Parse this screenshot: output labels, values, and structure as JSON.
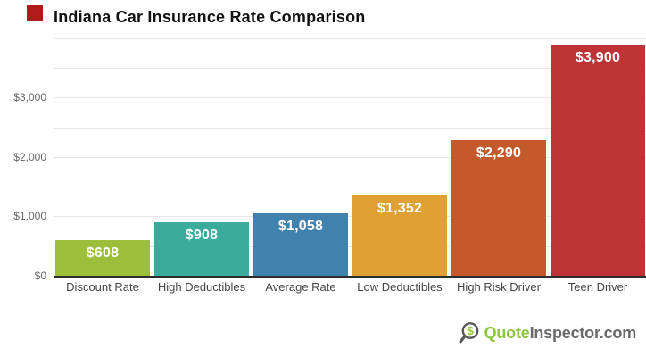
{
  "chart_data": {
    "type": "bar",
    "title": "Indiana Car Insurance Rate Comparison",
    "categories": [
      "Discount Rate",
      "High Deductibles",
      "Average Rate",
      "Low Deductibles",
      "High Risk Driver",
      "Teen Driver"
    ],
    "values": [
      608,
      908,
      1058,
      1352,
      2290,
      3900
    ],
    "bar_labels": [
      "$608",
      "$908",
      "$1,058",
      "$1,352",
      "$2,290",
      "$3,900"
    ],
    "colors": [
      "#9BBE3B",
      "#3AAC9C",
      "#4181AE",
      "#DFA134",
      "#C45A2C",
      "#BE3335"
    ],
    "xlabel": "",
    "ylabel": "",
    "ylim": [
      0,
      4000
    ],
    "gridline_step": 500,
    "grid": true,
    "legend": false,
    "yticks": [
      {
        "value": 0,
        "label": "$0"
      },
      {
        "value": 1000,
        "label": "$1,000"
      },
      {
        "value": 2000,
        "label": "$2,000"
      },
      {
        "value": 3000,
        "label": "$3,000"
      }
    ]
  },
  "watermark": {
    "icon": "dollar-magnifier-icon",
    "brand_green": "Quote",
    "brand_gray": "Inspector.com"
  },
  "colors": {
    "red_mark": "#B11B1B",
    "title_text": "#111111",
    "tick_text": "#666666",
    "category_text": "#464646",
    "grid": "#E7E7E7",
    "axis": "#2D2D2D",
    "brand_green": "#8CC63E",
    "brand_gray": "#6A6A6A",
    "icon_gray": "#58595B"
  }
}
